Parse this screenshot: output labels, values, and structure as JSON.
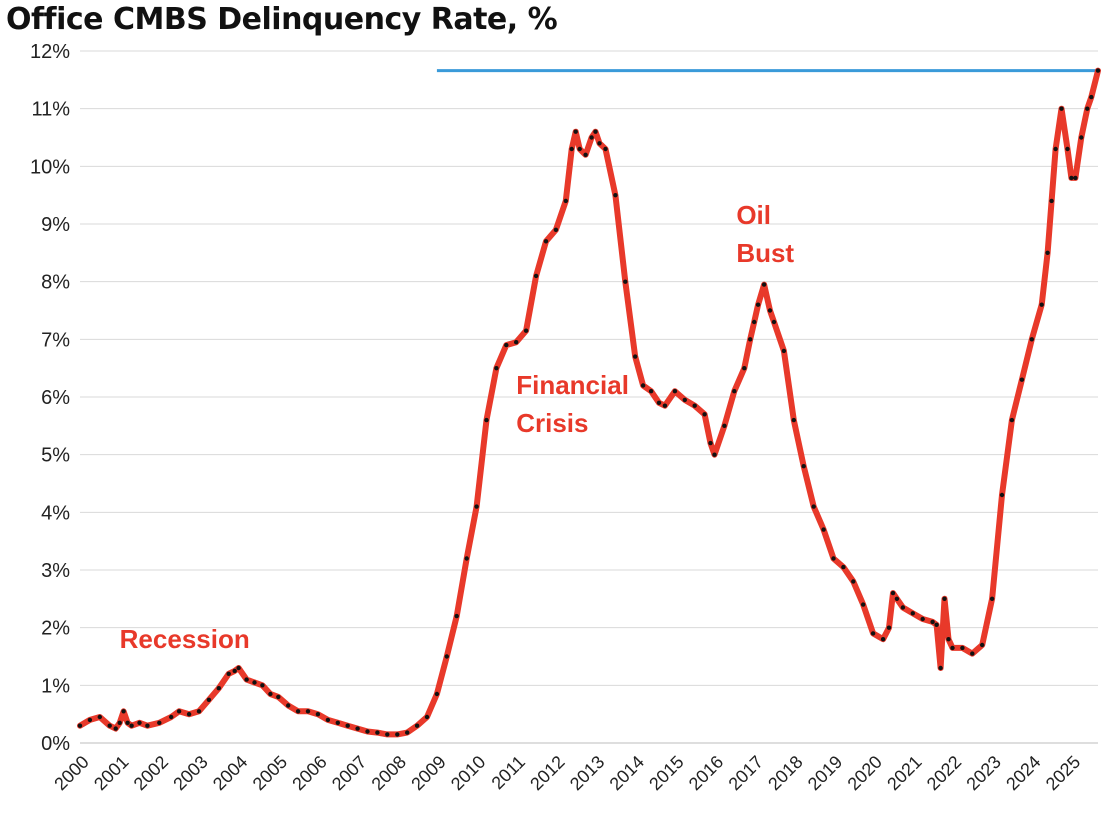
{
  "chart_data": {
    "type": "line",
    "title": "Office CMBS Delinquency Rate, %",
    "xlabel": "",
    "ylabel": "",
    "ylim": [
      0,
      12
    ],
    "xlim": [
      2000,
      2025.67
    ],
    "grid": true,
    "y_ticks": [
      "0%",
      "1%",
      "2%",
      "3%",
      "4%",
      "5%",
      "6%",
      "7%",
      "8%",
      "9%",
      "10%",
      "11%",
      "12%"
    ],
    "x_ticks": [
      "2000",
      "2001",
      "2002",
      "2003",
      "2004",
      "2005",
      "2006",
      "2007",
      "2008",
      "2009",
      "2010",
      "2011",
      "2012",
      "2013",
      "2014",
      "2015",
      "2016",
      "2017",
      "2018",
      "2019",
      "2020",
      "2021",
      "2022",
      "2023",
      "2024",
      "2025"
    ],
    "colors": {
      "line": "#e8392a",
      "markers": "#111111",
      "reference": "#3a9ad9",
      "annotation": "#e8392a"
    },
    "reference_line": {
      "value": 11.66,
      "x_start": 2009.0,
      "x_end": 2025.67
    },
    "annotations": [
      {
        "text": "Recession",
        "x": 2001.0,
        "y": 1.65,
        "lines": [
          "Recession"
        ]
      },
      {
        "text": "Financial Crisis",
        "x": 2011.0,
        "y": 6.05,
        "lines": [
          "Financial",
          "Crisis"
        ]
      },
      {
        "text": "Oil Bust",
        "x": 2016.55,
        "y": 9.0,
        "lines": [
          "Oil",
          "Bust"
        ]
      }
    ],
    "series": [
      {
        "x": [
          2000.0,
          2000.25,
          2000.5,
          2000.75,
          2000.9,
          2001.0,
          2001.1,
          2001.2,
          2001.3,
          2001.5,
          2001.7,
          2002.0,
          2002.3,
          2002.5,
          2002.75,
          2003.0,
          2003.25,
          2003.5,
          2003.75,
          2003.9,
          2004.0,
          2004.2,
          2004.4,
          2004.6,
          2004.8,
          2005.0,
          2005.25,
          2005.5,
          2005.75,
          2006.0,
          2006.25,
          2006.5,
          2006.75,
          2007.0,
          2007.25,
          2007.5,
          2007.75,
          2008.0,
          2008.25,
          2008.5,
          2008.75,
          2009.0,
          2009.25,
          2009.5,
          2009.75,
          2010.0,
          2010.25,
          2010.5,
          2010.75,
          2011.0,
          2011.25,
          2011.5,
          2011.75,
          2012.0,
          2012.25,
          2012.4,
          2012.5,
          2012.6,
          2012.75,
          2012.9,
          2013.0,
          2013.1,
          2013.25,
          2013.5,
          2013.75,
          2014.0,
          2014.2,
          2014.4,
          2014.6,
          2014.75,
          2015.0,
          2015.25,
          2015.5,
          2015.75,
          2015.9,
          2016.0,
          2016.25,
          2016.5,
          2016.75,
          2016.9,
          2017.0,
          2017.1,
          2017.25,
          2017.4,
          2017.5,
          2017.75,
          2018.0,
          2018.25,
          2018.5,
          2018.75,
          2019.0,
          2019.25,
          2019.5,
          2019.75,
          2020.0,
          2020.25,
          2020.4,
          2020.5,
          2020.6,
          2020.75,
          2021.0,
          2021.25,
          2021.5,
          2021.6,
          2021.7,
          2021.8,
          2021.9,
          2022.0,
          2022.25,
          2022.5,
          2022.75,
          2023.0,
          2023.25,
          2023.5,
          2023.75,
          2024.0,
          2024.25,
          2024.4,
          2024.5,
          2024.6,
          2024.75,
          2024.9,
          2025.0,
          2025.1,
          2025.25,
          2025.4,
          2025.5,
          2025.67
        ],
        "y": [
          0.3,
          0.4,
          0.45,
          0.3,
          0.25,
          0.35,
          0.55,
          0.35,
          0.3,
          0.35,
          0.3,
          0.35,
          0.45,
          0.55,
          0.5,
          0.55,
          0.75,
          0.95,
          1.2,
          1.25,
          1.3,
          1.1,
          1.05,
          1.0,
          0.85,
          0.8,
          0.65,
          0.55,
          0.55,
          0.5,
          0.4,
          0.35,
          0.3,
          0.25,
          0.2,
          0.18,
          0.15,
          0.15,
          0.18,
          0.3,
          0.45,
          0.85,
          1.5,
          2.2,
          3.2,
          4.1,
          5.6,
          6.5,
          6.9,
          6.95,
          7.15,
          8.1,
          8.7,
          8.9,
          9.4,
          10.3,
          10.6,
          10.3,
          10.2,
          10.5,
          10.6,
          10.4,
          10.3,
          9.5,
          8.0,
          6.7,
          6.2,
          6.1,
          5.9,
          5.85,
          6.1,
          5.95,
          5.85,
          5.7,
          5.2,
          5.0,
          5.5,
          6.1,
          6.5,
          7.0,
          7.3,
          7.6,
          7.95,
          7.5,
          7.3,
          6.8,
          5.6,
          4.8,
          4.1,
          3.7,
          3.2,
          3.05,
          2.8,
          2.4,
          1.9,
          1.8,
          2.0,
          2.6,
          2.5,
          2.35,
          2.25,
          2.15,
          2.1,
          2.05,
          1.3,
          2.5,
          1.8,
          1.65,
          1.65,
          1.55,
          1.7,
          2.5,
          4.3,
          5.6,
          6.3,
          7.0,
          7.6,
          8.5,
          9.4,
          10.3,
          11.0,
          10.3,
          9.8,
          9.8,
          10.5,
          11.0,
          11.2,
          11.66
        ]
      }
    ]
  }
}
